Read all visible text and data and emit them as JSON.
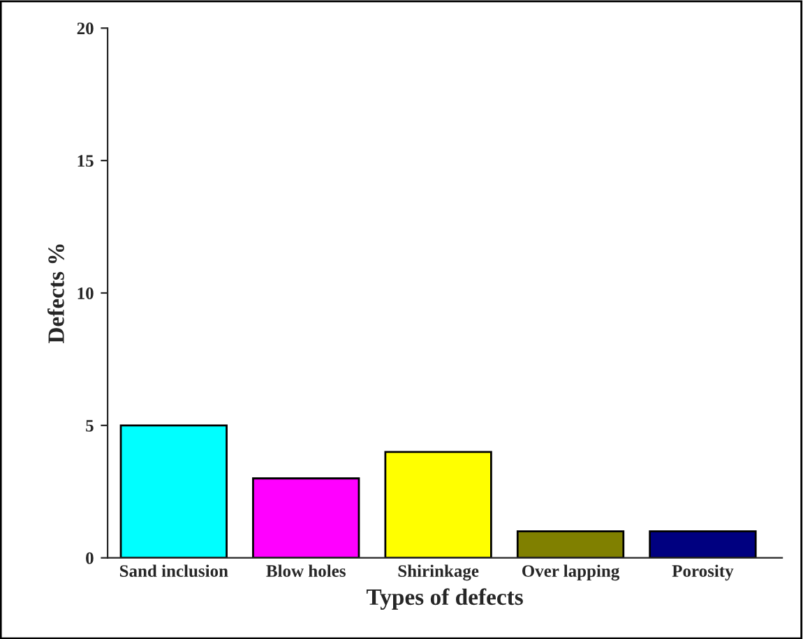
{
  "chart_data": {
    "type": "bar",
    "xlabel": "Types of defects",
    "ylabel": "Defects %",
    "categories": [
      "Sand inclusion",
      "Blow holes",
      "Shirinkage",
      "Over lapping",
      "Porosity"
    ],
    "values": [
      5,
      3,
      4,
      1,
      1
    ],
    "colors": [
      "#00ffff",
      "#ff00ff",
      "#ffff00",
      "#808000",
      "#000080"
    ],
    "ylim": [
      0,
      20
    ],
    "yticks": [
      0,
      5,
      10,
      15,
      20
    ],
    "grid": false,
    "legend": false
  }
}
